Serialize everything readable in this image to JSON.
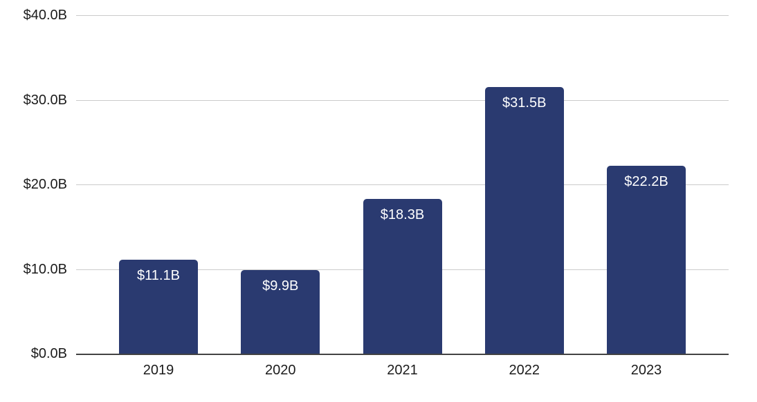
{
  "chart_data": {
    "type": "bar",
    "title": "",
    "xlabel": "",
    "ylabel": "",
    "categories": [
      "2019",
      "2020",
      "2021",
      "2022",
      "2023"
    ],
    "values": [
      11.1,
      9.9,
      18.3,
      31.5,
      22.2
    ],
    "bar_labels": [
      "$11.1B",
      "$9.9B",
      "$18.3B",
      "$31.5B",
      "$22.2B"
    ],
    "ylim": [
      0,
      40
    ],
    "yticks": [
      {
        "value": 0,
        "label": "$0.0B"
      },
      {
        "value": 10,
        "label": "$10.0B"
      },
      {
        "value": 20,
        "label": "$20.0B"
      },
      {
        "value": 30,
        "label": "$30.0B"
      },
      {
        "value": 40,
        "label": "$40.0B"
      }
    ],
    "grid": true,
    "legend": false,
    "bar_label_position": "inside-top",
    "colors": {
      "bar": "#2a3a70",
      "gridline": "#cbcbcb",
      "axis_line": "#424242",
      "tick_text": "#1b1b1b",
      "bar_label_text": "#ffffff",
      "background": "#ffffff"
    }
  }
}
